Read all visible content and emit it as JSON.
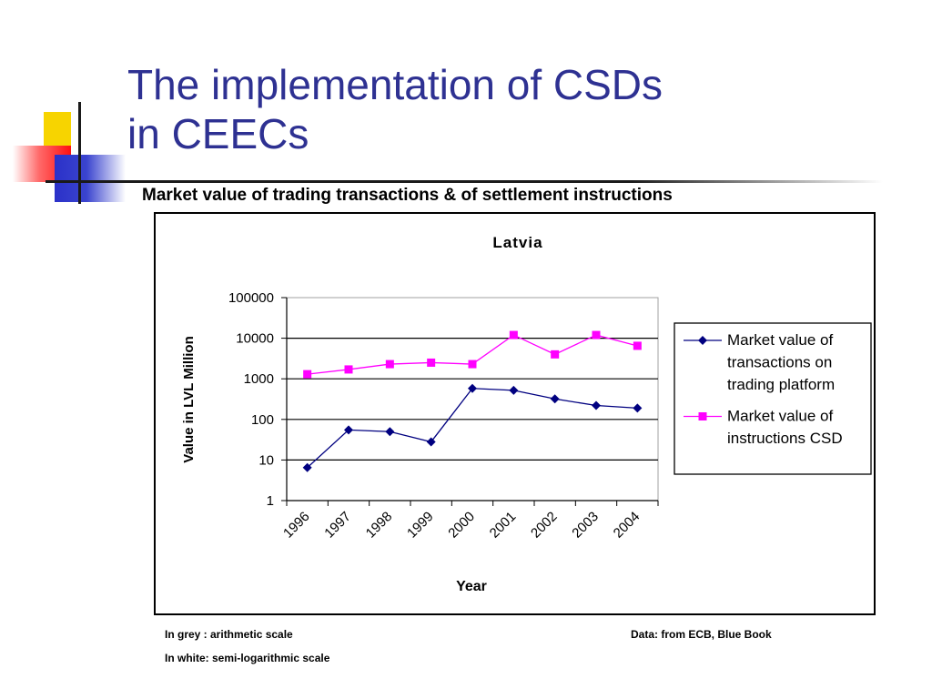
{
  "slide": {
    "title_line1": "The implementation of CSDs",
    "title_line2": "in CEECs",
    "chart_heading": "Market value of trading transactions & of settlement instructions",
    "footnote_grey": "In grey : arithmetic scale",
    "footnote_white": "In white: semi-logarithmic scale",
    "footnote_source": "Data: from ECB, Blue Book"
  },
  "colors": {
    "title": "#2e3192",
    "series_transactions": "#000080",
    "series_instructions": "#ff00ff"
  },
  "chart_data": {
    "type": "line",
    "title": "Latvia",
    "xlabel": "Year",
    "ylabel": "Value in LVL Million",
    "y_scale": "log",
    "ylim": [
      1,
      100000
    ],
    "yticks": [
      "1",
      "10",
      "100",
      "1000",
      "10000",
      "100000"
    ],
    "categories": [
      "1996",
      "1997",
      "1998",
      "1999",
      "2000",
      "2001",
      "2002",
      "2003",
      "2004"
    ],
    "grid": true,
    "legend_position": "right",
    "series": [
      {
        "name": "Market value of transactions on trading platform",
        "legend_lines": [
          "Market value of",
          "transactions on",
          "trading platform"
        ],
        "marker": "diamond",
        "color": "#000080",
        "values": [
          6.5,
          55,
          50,
          28,
          580,
          520,
          320,
          220,
          190
        ]
      },
      {
        "name": "Market value of instructions CSD",
        "legend_lines": [
          "Market value of",
          "instructions CSD"
        ],
        "marker": "square",
        "color": "#ff00ff",
        "values": [
          1300,
          1700,
          2300,
          2500,
          2300,
          12000,
          4000,
          12000,
          6500
        ]
      }
    ]
  }
}
